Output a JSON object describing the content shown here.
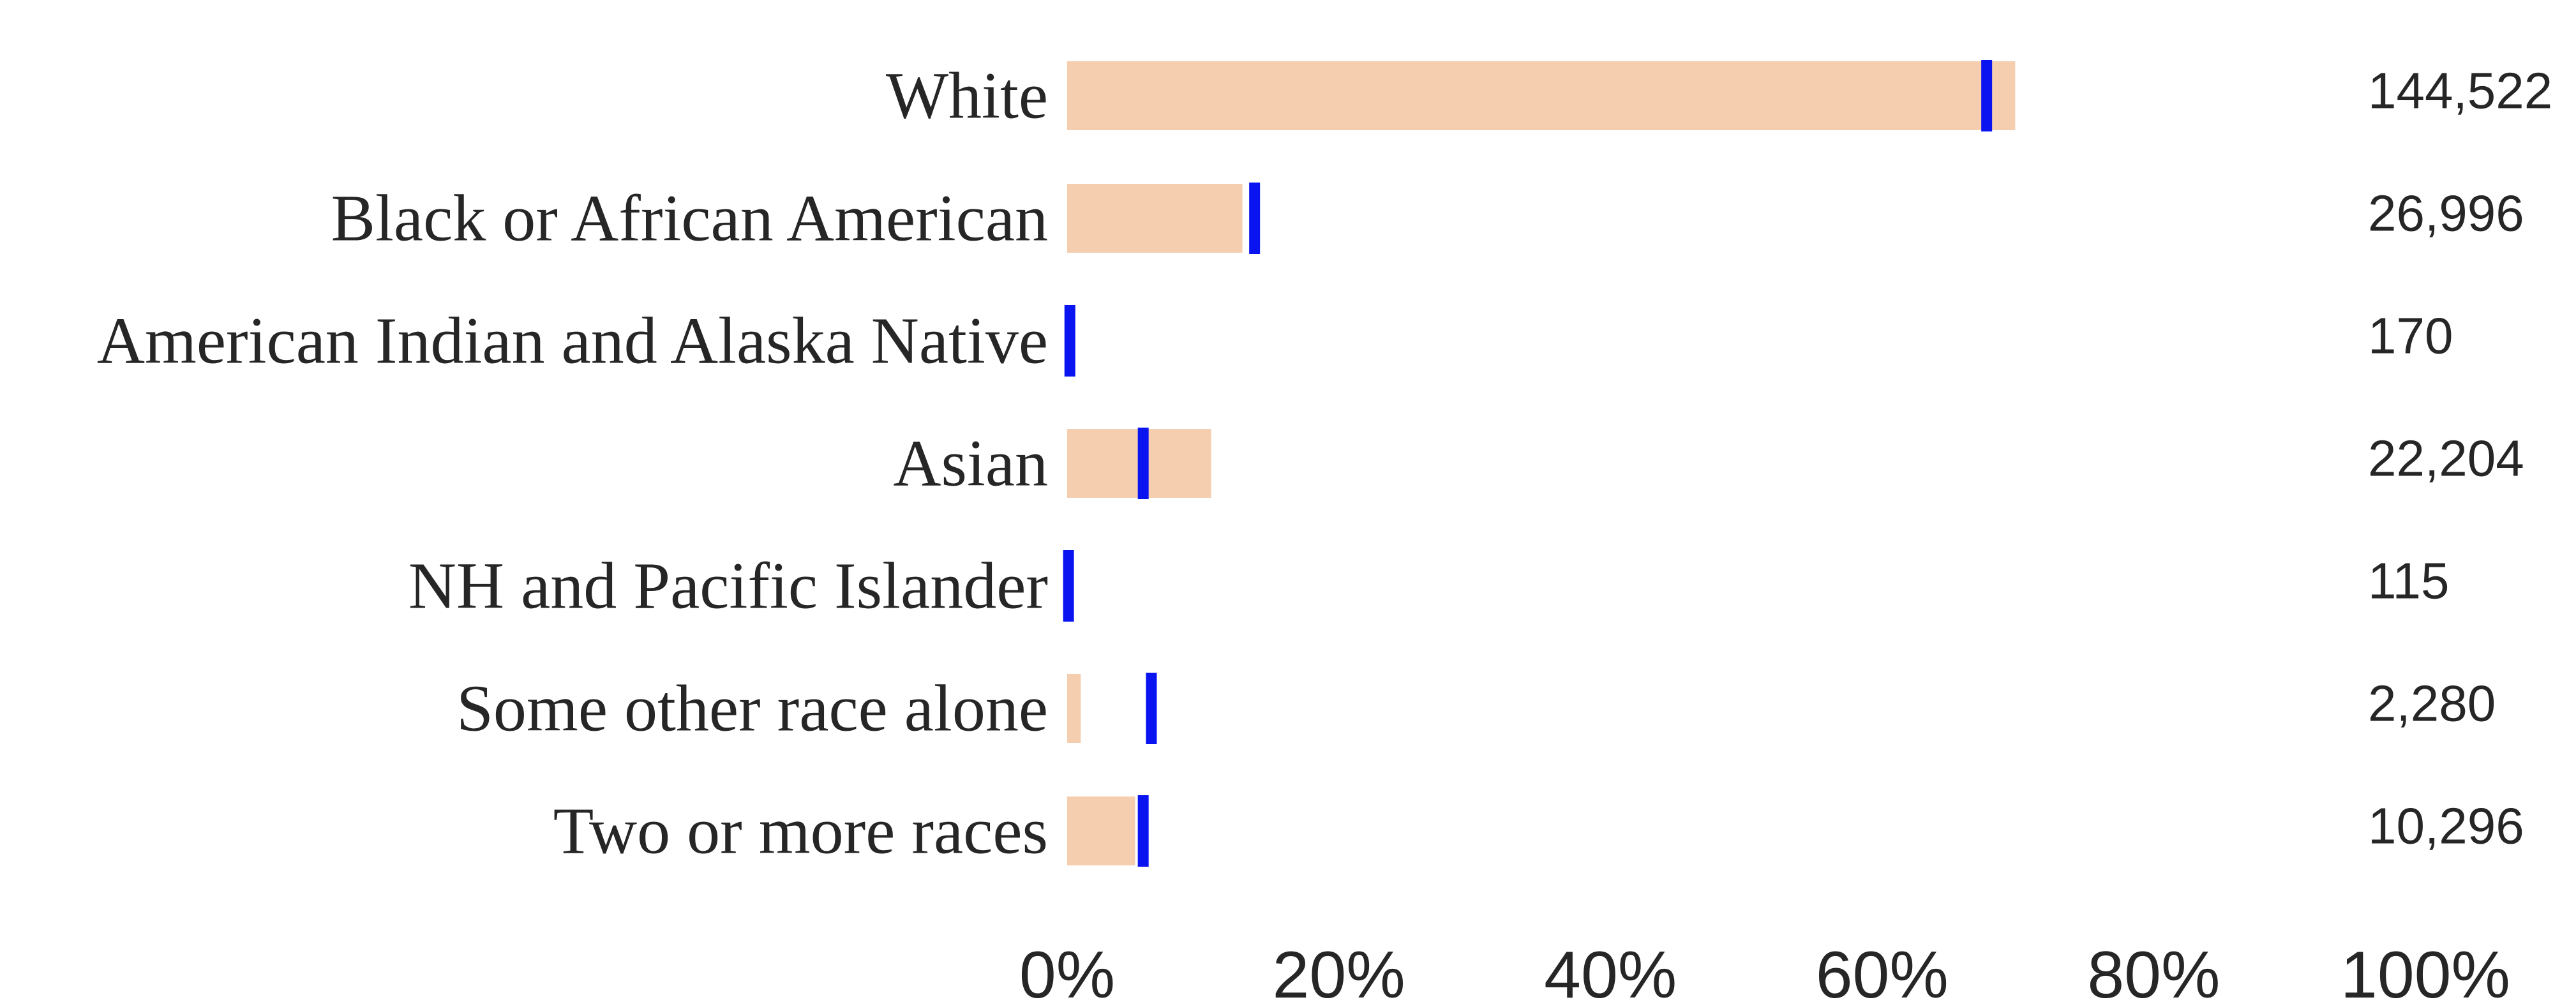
{
  "chart_data": {
    "type": "bar",
    "orientation": "horizontal",
    "categories": [
      "White",
      "Black or African American",
      "American Indian and Alaska Native",
      "Asian",
      "NH and Pacific Islander",
      "Some other race alone",
      "Two or more races"
    ],
    "series": [
      {
        "values": [
          69.8,
          12.9,
          0.1,
          10.6,
          0.1,
          1.0,
          5.0
        ],
        "color": "#f5ceb0"
      },
      {
        "values": [
          67.7,
          13.8,
          0.2,
          5.6,
          0.1,
          6.2,
          5.6
        ],
        "color": "#0a14f0",
        "mark": "tick"
      }
    ],
    "counts": [
      "144,522",
      "26,996",
      "170",
      "22,204",
      "115",
      "2,280",
      "10,296"
    ],
    "x_ticks": [
      "0%",
      "20%",
      "40%",
      "60%",
      "80%",
      "100%"
    ],
    "xlim": [
      0,
      100
    ],
    "grid": false,
    "legend": false,
    "title": "",
    "xlabel": "",
    "ylabel": ""
  }
}
